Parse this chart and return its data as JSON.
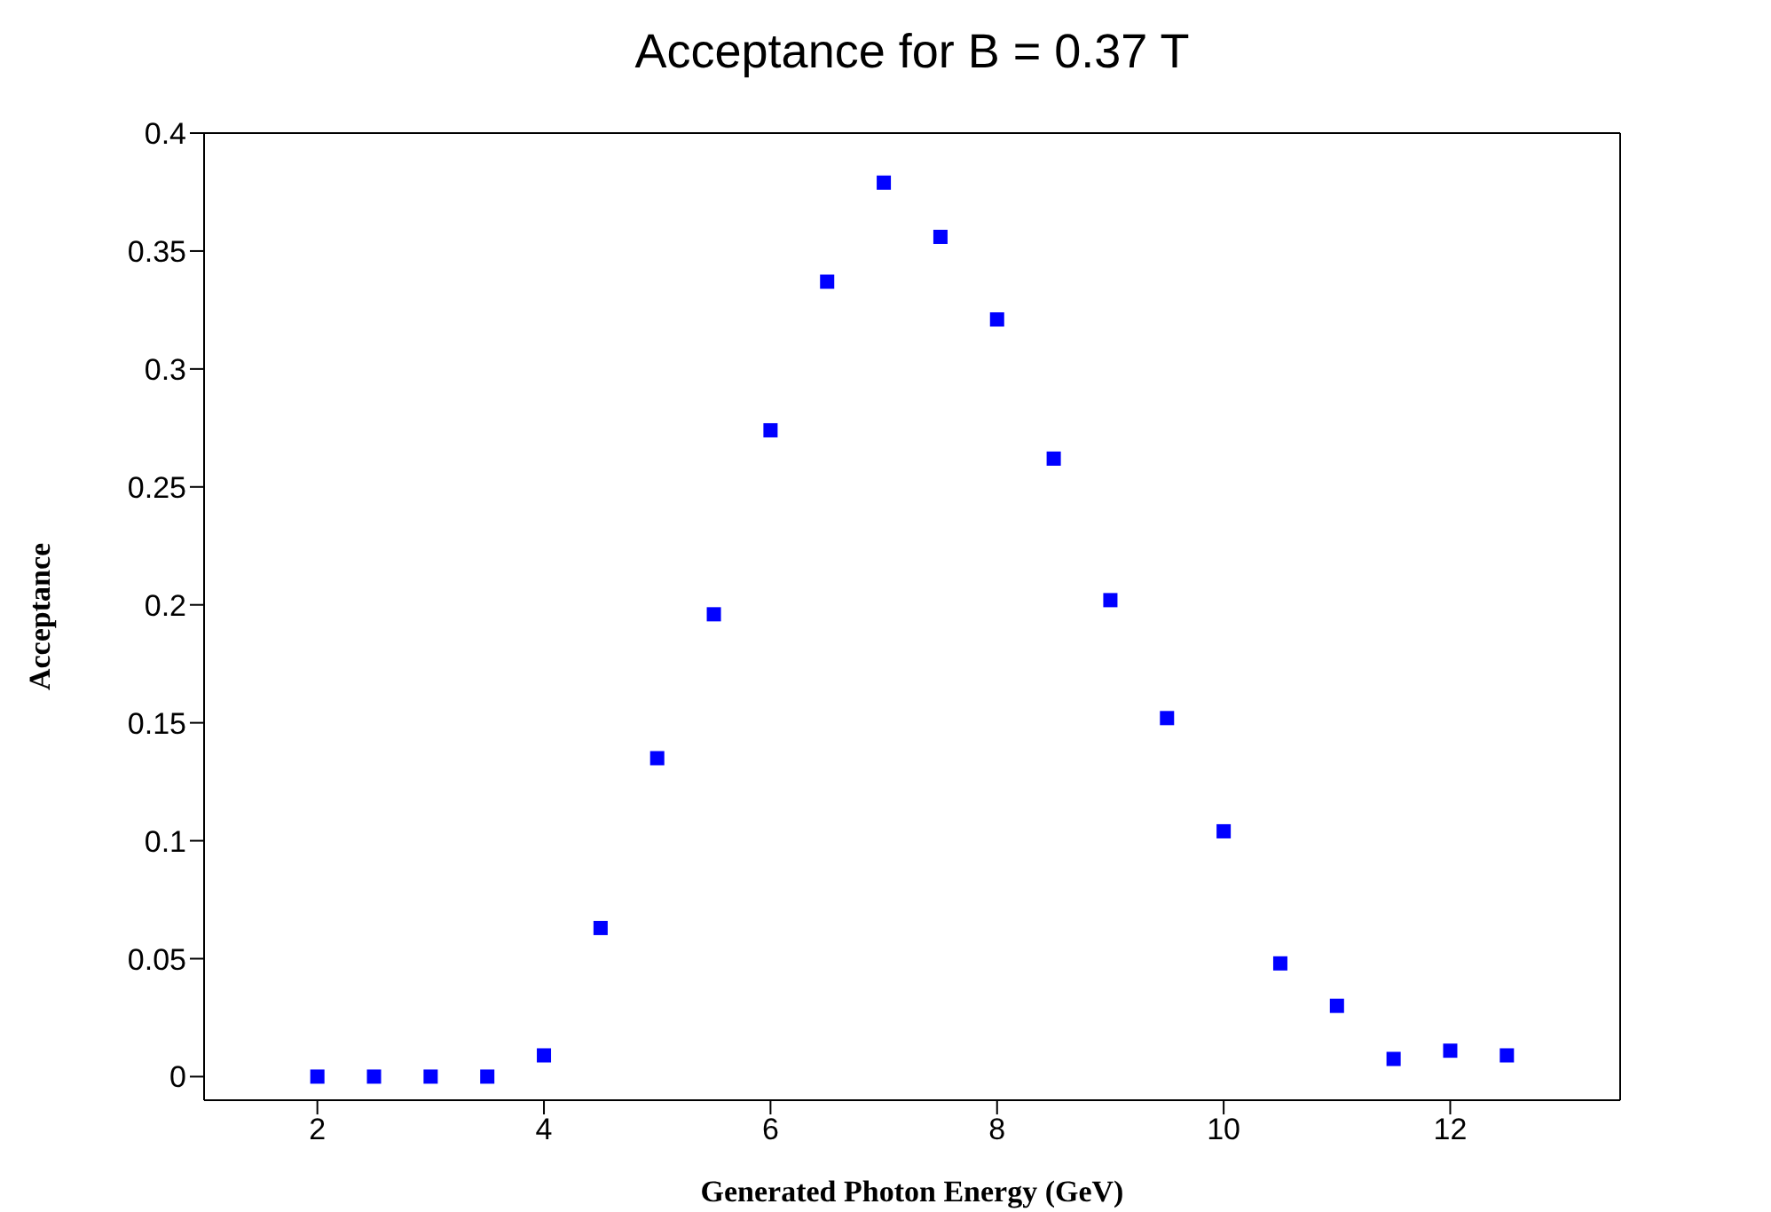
{
  "chart_data": {
    "type": "scatter",
    "title": "Acceptance for B = 0.37 T",
    "xlabel": "Generated Photon Energy (GeV)",
    "ylabel": "Acceptance",
    "x": [
      2,
      2.5,
      3,
      3.5,
      4,
      4.5,
      5,
      5.5,
      6,
      6.5,
      7,
      7.5,
      8,
      8.5,
      9,
      9.5,
      10,
      10.5,
      11,
      11.5,
      12,
      12.5
    ],
    "series": [
      {
        "color": "#0000ff",
        "values": [
          0,
          0,
          0,
          0,
          0.009,
          0.063,
          0.135,
          0.196,
          0.274,
          0.337,
          0.379,
          0.356,
          0.321,
          0.262,
          0.202,
          0.152,
          0.104,
          0.048,
          0.03,
          0.0075,
          0.011,
          0.009
        ]
      }
    ],
    "xlim": [
      1,
      13.5
    ],
    "xticks": [
      2,
      4,
      6,
      8,
      10,
      12
    ],
    "ylim": [
      -0.01,
      0.4
    ],
    "yticks": [
      0,
      0.05,
      0.1,
      0.15,
      0.2,
      0.25,
      0.3,
      0.35,
      0.4
    ],
    "marker": "square",
    "grid": false
  }
}
